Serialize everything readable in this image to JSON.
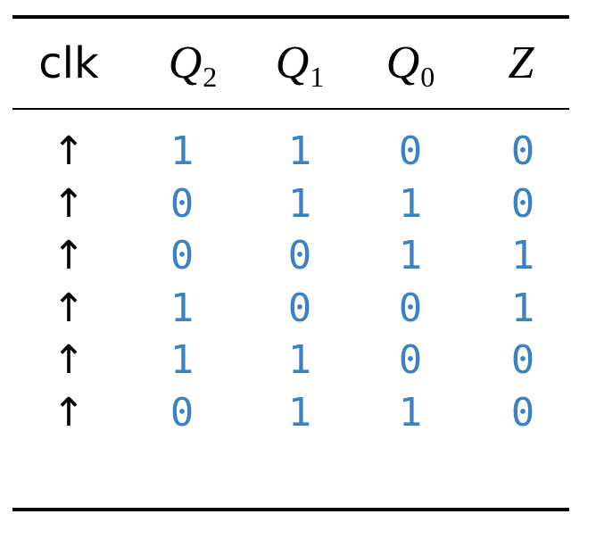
{
  "columns": [
    {
      "label": "clk",
      "sub": ""
    },
    {
      "label": "Q",
      "sub": "2"
    },
    {
      "label": "Q",
      "sub": "1"
    },
    {
      "label": "Q",
      "sub": "0"
    },
    {
      "label": "Z",
      "sub": ""
    }
  ],
  "rows": [
    {
      "clk": "↑",
      "q2": "1",
      "q1": "1",
      "q0": "0",
      "z": "0"
    },
    {
      "clk": "↑",
      "q2": "0",
      "q1": "1",
      "q0": "1",
      "z": "0"
    },
    {
      "clk": "↑",
      "q2": "0",
      "q1": "0",
      "q0": "1",
      "z": "1"
    },
    {
      "clk": "↑",
      "q2": "1",
      "q1": "0",
      "q0": "0",
      "z": "1"
    },
    {
      "clk": "↑",
      "q2": "1",
      "q1": "1",
      "q0": "0",
      "z": "0"
    },
    {
      "clk": "↑",
      "q2": "0",
      "q1": "1",
      "q0": "1",
      "z": "0"
    }
  ],
  "colors": {
    "value": "#3b82c4",
    "text": "#000000",
    "rule": "#000000"
  }
}
